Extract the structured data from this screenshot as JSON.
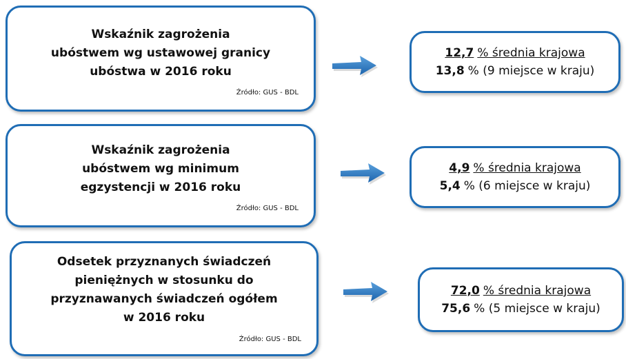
{
  "rows": [
    {
      "title_lines": [
        "Wskaźnik zagrożenia",
        "ubóstwem wg ustawowej granicy",
        "ubóstwa w 2016 roku"
      ],
      "source": "Źródło: GUS - BDL",
      "national_value": "12,7",
      "national_label": "% średnia krajowa",
      "regional_value": "13,8",
      "regional_label": "% (9 miejsce w kraju)"
    },
    {
      "title_lines": [
        "Wskaźnik zagrożenia",
        "ubóstwem wg minimum",
        "egzystencji w 2016 roku"
      ],
      "source": "Źródło: GUS - BDL",
      "national_value": "4,9",
      "national_label": "% średnia krajowa",
      "regional_value": "5,4",
      "regional_label": "% (6 miejsce w kraju)"
    },
    {
      "title_lines": [
        "Odsetek przyznanych świadczeń",
        "pieniężnych w stosunku do",
        "przyznawanych świadczeń ogółem",
        "w 2016 roku"
      ],
      "source": "Źródło: GUS - BDL",
      "national_value": "72,0",
      "national_label": "% średnia krajowa",
      "regional_value": "75,6",
      "regional_label": "% (5 miejsce w kraju)"
    }
  ]
}
